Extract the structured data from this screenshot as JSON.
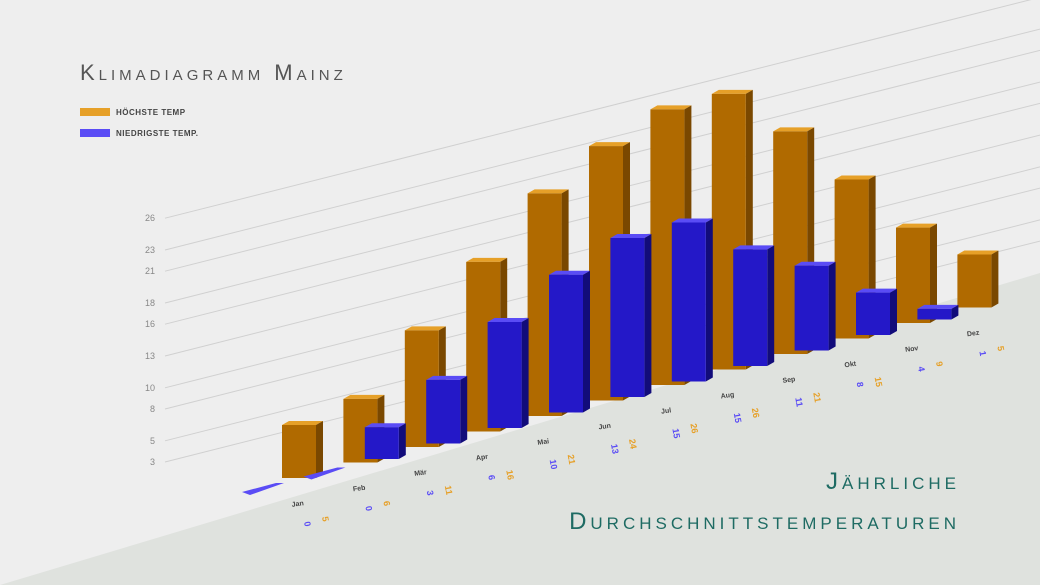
{
  "colors": {
    "high_front": "#b06a00",
    "high_side": "#7a4800",
    "high_top": "#e6a028",
    "low_front": "#2418c8",
    "low_side": "#120c7a",
    "low_top": "#5a4cf5",
    "background": "#eeeeee",
    "floor": "#dfe2de",
    "grid": "#d0d0d0",
    "tick": "#888888",
    "subtitle": "#1e6b63"
  },
  "chart_data": {
    "type": "bar",
    "title": "Klimadiagramm Mainz",
    "subtitle_line1": "Jährliche",
    "subtitle_line2": "Durchschnittstemperaturen",
    "categories": [
      "Jan",
      "Feb",
      "Mär",
      "Apr",
      "Mai",
      "Jun",
      "Jul",
      "Aug",
      "Sep",
      "Okt",
      "Nov",
      "Dez"
    ],
    "series": [
      {
        "name": "höchste Temp",
        "color": "#e6a028",
        "values": [
          5,
          6,
          11,
          16,
          21,
          24,
          26,
          26,
          21,
          15,
          9,
          5
        ]
      },
      {
        "name": "niedrigste Temp.",
        "color": "#5a4cf5",
        "values": [
          0,
          0,
          3,
          6,
          10,
          13,
          15,
          15,
          11,
          8,
          4,
          1
        ]
      }
    ],
    "y_ticks": [
      3,
      5,
      8,
      10,
      13,
      16,
      18,
      21,
      23,
      26
    ],
    "ylim": [
      0,
      28
    ],
    "grid": true,
    "legend": "top-left"
  }
}
